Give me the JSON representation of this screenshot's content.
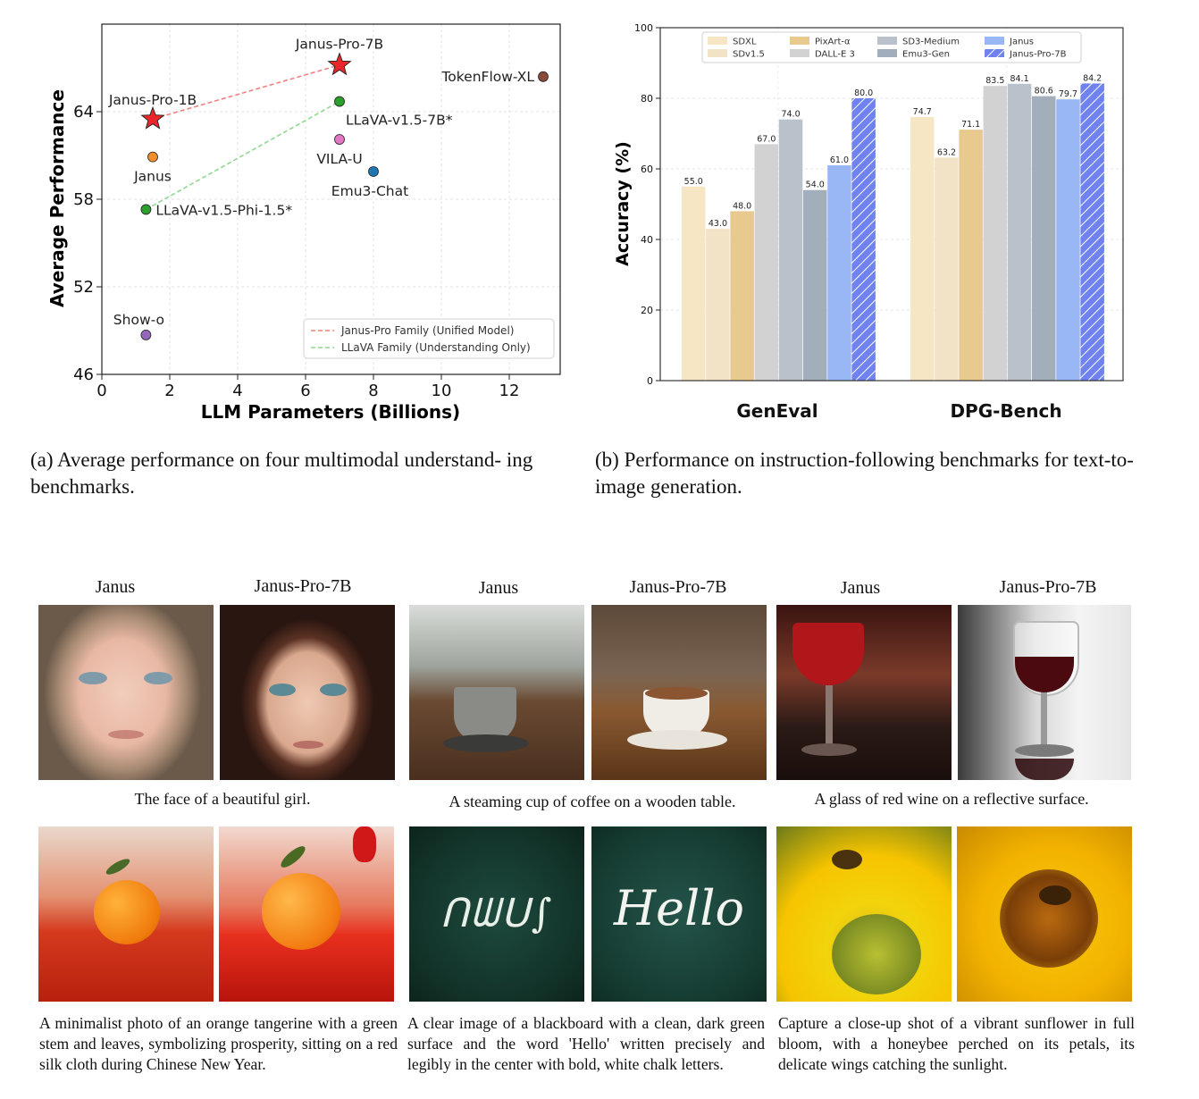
{
  "chart_data": [
    {
      "type": "scatter",
      "title": "",
      "xlabel": "LLM Parameters (Billions)",
      "ylabel": "Average Performance",
      "xlim": [
        0,
        13.5
      ],
      "ylim": [
        46,
        70
      ],
      "xticks": [
        "0",
        "2",
        "4",
        "6",
        "8",
        "10",
        "12"
      ],
      "yticks": [
        "46",
        "52",
        "58",
        "64"
      ],
      "grid": true,
      "legend_position": "bottom-right",
      "points": [
        {
          "label": "Janus-Pro-7B",
          "x": 7.0,
          "y": 67.2,
          "color": "#e8262b",
          "marker": "star"
        },
        {
          "label": "Janus-Pro-1B",
          "x": 1.5,
          "y": 63.5,
          "color": "#e8262b",
          "marker": "star"
        },
        {
          "label": "TokenFlow-XL",
          "x": 13.0,
          "y": 66.4,
          "color": "#8c4a3a",
          "marker": "circle"
        },
        {
          "label": "LLaVA-v1.5-7B*",
          "x": 7.0,
          "y": 64.7,
          "color": "#2ca02c",
          "marker": "circle"
        },
        {
          "label": "VILA-U",
          "x": 7.0,
          "y": 62.1,
          "color": "#e377c2",
          "marker": "circle"
        },
        {
          "label": "Janus",
          "x": 1.5,
          "y": 60.9,
          "color": "#f28e2b",
          "marker": "circle"
        },
        {
          "label": "Emu3-Chat",
          "x": 8.0,
          "y": 59.9,
          "color": "#1f77b4",
          "marker": "circle"
        },
        {
          "label": "LLaVA-v1.5-Phi-1.5*",
          "x": 1.3,
          "y": 57.3,
          "color": "#2ca02c",
          "marker": "circle"
        },
        {
          "label": "Show-o",
          "x": 1.3,
          "y": 48.7,
          "color": "#9467bd",
          "marker": "circle"
        }
      ],
      "lines": [
        {
          "name": "Janus-Pro Family (Unified Model)",
          "color": "#f08080",
          "from": [
            1.5,
            63.5
          ],
          "to": [
            7.0,
            67.2
          ]
        },
        {
          "name": "LLaVA Family (Understanding Only)",
          "color": "#90d890",
          "from": [
            1.3,
            57.3
          ],
          "to": [
            7.0,
            64.7
          ]
        }
      ]
    },
    {
      "type": "bar",
      "title": "",
      "xlabel": "",
      "ylabel": "Accuracy (%)",
      "ylim": [
        0,
        100
      ],
      "yticks": [
        "0",
        "20",
        "40",
        "60",
        "80",
        "100"
      ],
      "grid": true,
      "legend_position": "top",
      "categories": [
        "GenEval",
        "DPG-Bench"
      ],
      "series": [
        {
          "name": "SDXL",
          "color": "#f6e6c4",
          "values": [
            55.0,
            74.7
          ]
        },
        {
          "name": "SDv1.5",
          "color": "#f3e3c6",
          "values": [
            43.0,
            63.2
          ]
        },
        {
          "name": "PixArt-α",
          "color": "#e8c98e",
          "values": [
            48.0,
            71.1
          ]
        },
        {
          "name": "DALL-E 3",
          "color": "#d2d2d2",
          "values": [
            67.0,
            83.5
          ]
        },
        {
          "name": "SD3-Medium",
          "color": "#b9c1cb",
          "values": [
            74.0,
            84.1
          ]
        },
        {
          "name": "Emu3-Gen",
          "color": "#a3aebd",
          "values": [
            54.0,
            80.6
          ]
        },
        {
          "name": "Janus",
          "color": "#9ab7f5",
          "values": [
            61.0,
            79.7
          ]
        },
        {
          "name": "Janus-Pro-7B",
          "color": "#7b8cf2",
          "values": [
            80.0,
            84.2
          ],
          "hatch": true
        }
      ],
      "value_labels": [
        [
          "55.0",
          "43.0",
          "48.0",
          "67.0",
          "74.0",
          "54.0",
          "61.0",
          "80.0"
        ],
        [
          "74.7",
          "63.2",
          "71.1",
          "83.5",
          "84.1",
          "80.6",
          "79.7",
          "84.2"
        ]
      ]
    }
  ],
  "captions": {
    "a": "(a) Average performance on four multimodal understand- ing benchmarks.",
    "b": "(b) Performance on instruction-following benchmarks for text-to-image generation."
  },
  "gallery": {
    "col_janus": "Janus",
    "col_pro": "Janus-Pro-7B",
    "groups": [
      {
        "top_caption": "The face of a beautiful girl.",
        "bottom_caption": "A minimalist photo of an orange tangerine with a green stem and leaves, symbolizing prosperity, sitting on a red silk cloth during Chinese New Year."
      },
      {
        "top_caption": "A steaming cup of coffee on a wooden table.",
        "bottom_caption": "A clear image of a blackboard with a clean, dark green surface and the word 'Hello' written precisely and legibly in the center with bold, white chalk letters."
      },
      {
        "top_caption": "A glass of red wine on a reflective surface.",
        "bottom_caption": "Capture a close-up shot of a vibrant sunflower in full bloom, with a honeybee perched on its petals, its delicate wings catching the sunlight."
      }
    ],
    "hello_text": "Hello",
    "scribble_text": "ᑎᗯᑌ∫"
  }
}
